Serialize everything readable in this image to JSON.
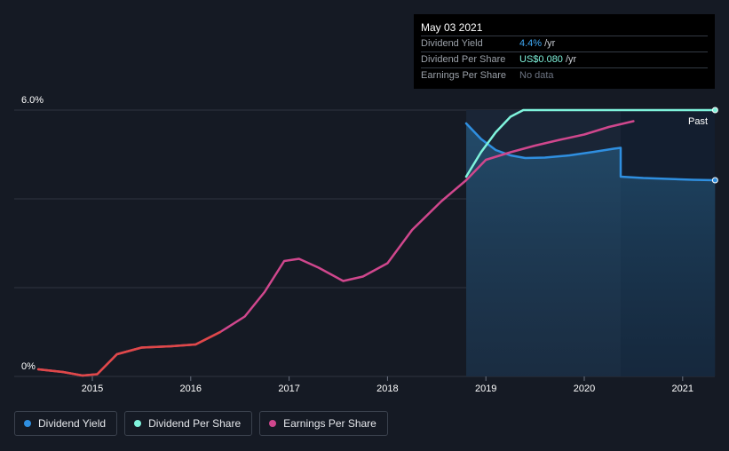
{
  "chart_data": {
    "type": "line",
    "y_axis": {
      "labels": [
        "6.0%",
        "0%"
      ],
      "min": 0,
      "max": 6.0,
      "gridlines": [
        0,
        2,
        4,
        6
      ]
    },
    "x_axis": {
      "ticks": [
        "2015",
        "2016",
        "2017",
        "2018",
        "2019",
        "2020",
        "2021"
      ],
      "range": [
        2014.45,
        2021.35
      ]
    },
    "region_label": "Past",
    "series": [
      {
        "name": "Dividend Yield",
        "color": "#2f8fe0",
        "points": [
          [
            2018.8,
            5.7
          ],
          [
            2018.95,
            5.35
          ],
          [
            2019.1,
            5.1
          ],
          [
            2019.25,
            4.98
          ],
          [
            2019.4,
            4.92
          ],
          [
            2019.6,
            4.93
          ],
          [
            2019.85,
            4.98
          ],
          [
            2020.1,
            5.06
          ],
          [
            2020.3,
            5.13
          ],
          [
            2020.37,
            5.15
          ],
          [
            2020.37,
            4.5
          ],
          [
            2020.6,
            4.47
          ],
          [
            2020.85,
            4.45
          ],
          [
            2021.1,
            4.43
          ],
          [
            2021.33,
            4.42
          ]
        ]
      },
      {
        "name": "Dividend Per Share",
        "color": "#7ff3dc",
        "points": [
          [
            2018.8,
            4.5
          ],
          [
            2018.95,
            5.05
          ],
          [
            2019.1,
            5.5
          ],
          [
            2019.25,
            5.85
          ],
          [
            2019.38,
            6.0
          ],
          [
            2019.6,
            6.0
          ],
          [
            2020.0,
            6.0
          ],
          [
            2020.5,
            6.0
          ],
          [
            2021.0,
            6.0
          ],
          [
            2021.33,
            6.0
          ]
        ]
      },
      {
        "name": "Earnings Per Share",
        "color": "#d0478d",
        "points": [
          [
            2014.45,
            0.16
          ],
          [
            2014.7,
            0.1
          ],
          [
            2014.9,
            0.02
          ],
          [
            2015.05,
            0.05
          ],
          [
            2015.25,
            0.5
          ],
          [
            2015.5,
            0.65
          ],
          [
            2015.8,
            0.68
          ],
          [
            2016.05,
            0.72
          ],
          [
            2016.3,
            1.0
          ],
          [
            2016.55,
            1.35
          ],
          [
            2016.75,
            1.9
          ],
          [
            2016.95,
            2.6
          ],
          [
            2017.1,
            2.65
          ],
          [
            2017.3,
            2.45
          ],
          [
            2017.55,
            2.15
          ],
          [
            2017.75,
            2.25
          ],
          [
            2018.0,
            2.55
          ],
          [
            2018.25,
            3.3
          ],
          [
            2018.55,
            3.95
          ],
          [
            2018.8,
            4.42
          ],
          [
            2019.0,
            4.88
          ],
          [
            2019.25,
            5.05
          ],
          [
            2019.5,
            5.2
          ],
          [
            2019.75,
            5.33
          ],
          [
            2020.0,
            5.45
          ],
          [
            2020.25,
            5.62
          ],
          [
            2020.5,
            5.75
          ]
        ]
      }
    ],
    "tooltip": {
      "date": "May 03 2021",
      "rows": [
        {
          "name": "Dividend Yield",
          "value": "4.4%",
          "unit": "/yr"
        },
        {
          "name": "Dividend Per Share",
          "value": "US$0.080",
          "unit": "/yr"
        },
        {
          "name": "Earnings Per Share",
          "value": "No data",
          "unit": ""
        }
      ]
    },
    "legend": [
      {
        "label": "Dividend Yield",
        "color": "#2f8fe0"
      },
      {
        "label": "Dividend Per Share",
        "color": "#7ff3dc"
      },
      {
        "label": "Earnings Per Share",
        "color": "#d0478d"
      }
    ]
  }
}
